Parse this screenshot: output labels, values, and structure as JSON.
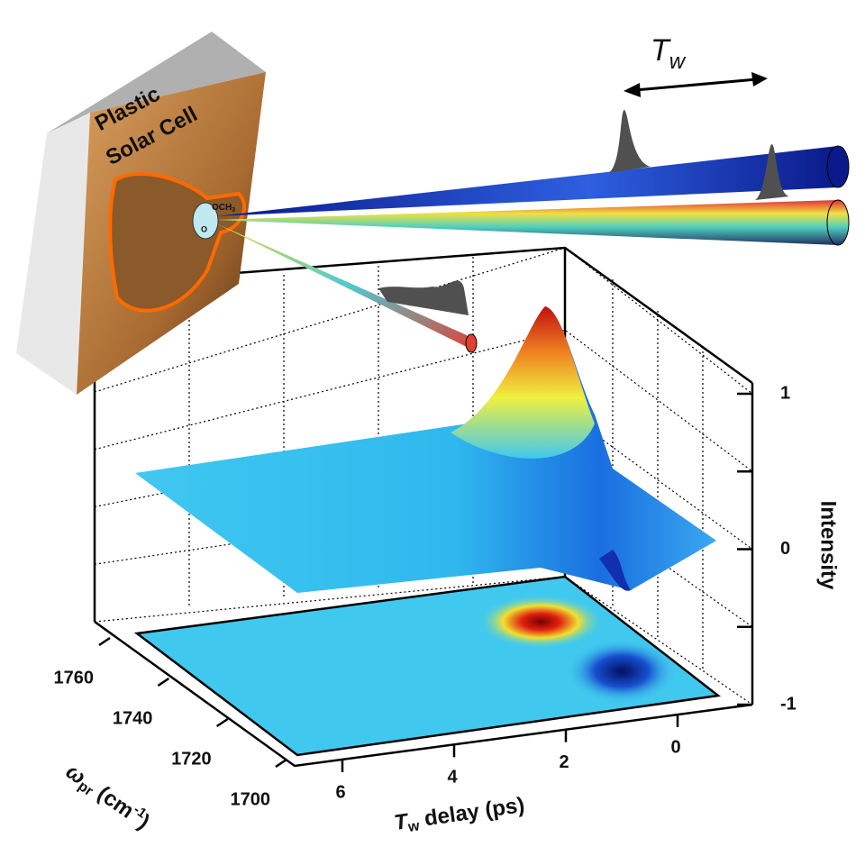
{
  "cell_label": [
    "Plastic",
    "Solar Cell"
  ],
  "group_label": {
    "text": "OCH",
    "sub": "3"
  },
  "carbonyl_label": "O",
  "pulse_label": {
    "text": "T",
    "sub": "w"
  },
  "chart_data": {
    "type": "surface3d",
    "x_axis": {
      "label": {
        "text": "T",
        "sub": "w",
        "rest": " delay (ps)"
      },
      "xlim": [
        0,
        6
      ],
      "xticks": [
        6,
        4,
        2,
        0
      ]
    },
    "y_axis": {
      "label": {
        "text": "ω",
        "sub": "pr",
        "rest": " (cm",
        "sup": "-1",
        "end": ")"
      },
      "ylim": [
        1700,
        1760
      ],
      "yticks": [
        1700,
        1720,
        1740,
        1760
      ]
    },
    "z_axis": {
      "label": "Intensity",
      "zlim": [
        -1,
        1
      ],
      "zticks": [
        -1,
        0,
        1
      ],
      "zminor": [
        -0.5,
        0.5
      ]
    }
  }
}
